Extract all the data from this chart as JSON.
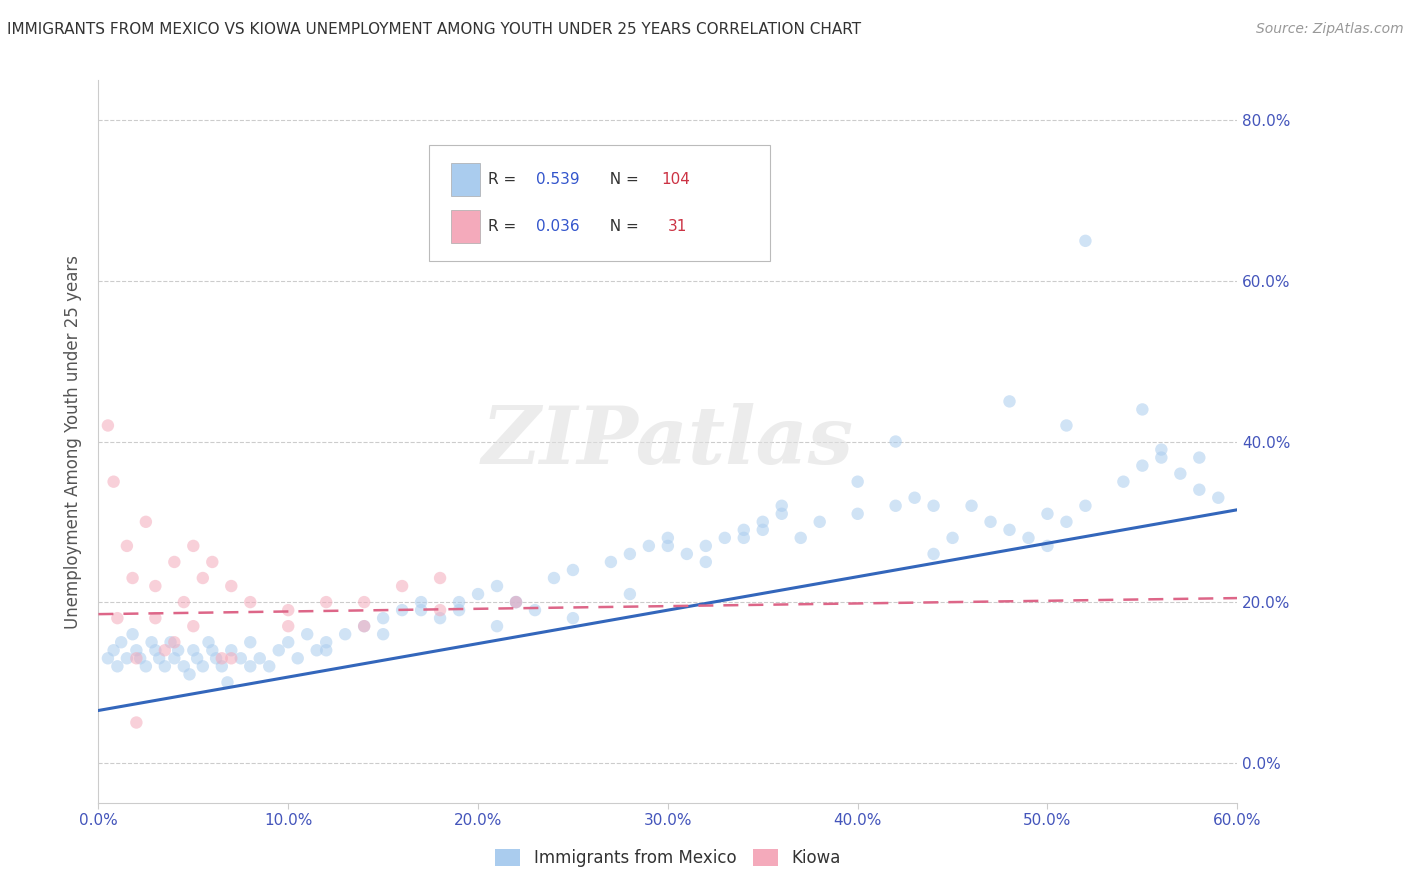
{
  "title": "IMMIGRANTS FROM MEXICO VS KIOWA UNEMPLOYMENT AMONG YOUTH UNDER 25 YEARS CORRELATION CHART",
  "source_text": "Source: ZipAtlas.com",
  "ylabel": "Unemployment Among Youth under 25 years",
  "x_min": 0.0,
  "x_max": 0.6,
  "y_min": -0.05,
  "y_max": 0.85,
  "x_ticks": [
    0.0,
    0.1,
    0.2,
    0.3,
    0.4,
    0.5,
    0.6
  ],
  "x_tick_labels": [
    "0.0%",
    "10.0%",
    "20.0%",
    "30.0%",
    "40.0%",
    "50.0%",
    "60.0%"
  ],
  "y_ticks": [
    0.0,
    0.2,
    0.4,
    0.6,
    0.8
  ],
  "y_tick_labels_left": [
    "",
    "",
    "",
    "",
    ""
  ],
  "y_tick_labels_right": [
    "0.0%",
    "20.0%",
    "40.0%",
    "60.0%",
    "80.0%"
  ],
  "legend_entries": [
    {
      "label": "Immigrants from Mexico",
      "color": "#a8c8f0",
      "R": "0.539",
      "N": "104"
    },
    {
      "label": "Kiowa",
      "color": "#f4b8c8",
      "R": "0.036",
      "N": "31"
    }
  ],
  "blue_scatter_x": [
    0.005,
    0.008,
    0.01,
    0.012,
    0.015,
    0.018,
    0.02,
    0.022,
    0.025,
    0.028,
    0.03,
    0.032,
    0.035,
    0.038,
    0.04,
    0.042,
    0.045,
    0.048,
    0.05,
    0.052,
    0.055,
    0.058,
    0.06,
    0.062,
    0.065,
    0.068,
    0.07,
    0.075,
    0.08,
    0.085,
    0.09,
    0.095,
    0.1,
    0.105,
    0.11,
    0.115,
    0.12,
    0.13,
    0.14,
    0.15,
    0.16,
    0.17,
    0.18,
    0.19,
    0.2,
    0.21,
    0.22,
    0.23,
    0.24,
    0.25,
    0.27,
    0.28,
    0.29,
    0.3,
    0.31,
    0.32,
    0.33,
    0.34,
    0.35,
    0.36,
    0.37,
    0.38,
    0.4,
    0.42,
    0.43,
    0.44,
    0.45,
    0.46,
    0.47,
    0.48,
    0.49,
    0.5,
    0.51,
    0.52,
    0.54,
    0.55,
    0.56,
    0.57,
    0.58,
    0.59,
    0.48,
    0.52,
    0.55,
    0.56,
    0.5,
    0.35,
    0.28,
    0.25,
    0.21,
    0.19,
    0.17,
    0.15,
    0.36,
    0.4,
    0.42,
    0.3,
    0.34,
    0.32,
    0.22,
    0.12,
    0.08,
    0.44,
    0.51,
    0.58
  ],
  "blue_scatter_y": [
    0.13,
    0.14,
    0.12,
    0.15,
    0.13,
    0.16,
    0.14,
    0.13,
    0.12,
    0.15,
    0.14,
    0.13,
    0.12,
    0.15,
    0.13,
    0.14,
    0.12,
    0.11,
    0.14,
    0.13,
    0.12,
    0.15,
    0.14,
    0.13,
    0.12,
    0.1,
    0.14,
    0.13,
    0.15,
    0.13,
    0.12,
    0.14,
    0.15,
    0.13,
    0.16,
    0.14,
    0.15,
    0.16,
    0.17,
    0.18,
    0.19,
    0.2,
    0.18,
    0.19,
    0.21,
    0.22,
    0.2,
    0.19,
    0.23,
    0.24,
    0.25,
    0.26,
    0.27,
    0.28,
    0.26,
    0.27,
    0.28,
    0.29,
    0.3,
    0.31,
    0.28,
    0.3,
    0.31,
    0.32,
    0.33,
    0.32,
    0.28,
    0.32,
    0.3,
    0.29,
    0.28,
    0.31,
    0.3,
    0.32,
    0.35,
    0.37,
    0.38,
    0.36,
    0.34,
    0.33,
    0.45,
    0.65,
    0.44,
    0.39,
    0.27,
    0.29,
    0.21,
    0.18,
    0.17,
    0.2,
    0.19,
    0.16,
    0.32,
    0.35,
    0.4,
    0.27,
    0.28,
    0.25,
    0.2,
    0.14,
    0.12,
    0.26,
    0.42,
    0.38
  ],
  "blue_line_x": [
    0.0,
    0.6
  ],
  "blue_line_y": [
    0.065,
    0.315
  ],
  "pink_scatter_x": [
    0.005,
    0.008,
    0.01,
    0.015,
    0.018,
    0.02,
    0.025,
    0.03,
    0.035,
    0.04,
    0.045,
    0.05,
    0.055,
    0.06,
    0.065,
    0.07,
    0.08,
    0.1,
    0.12,
    0.14,
    0.16,
    0.18,
    0.02,
    0.03,
    0.04,
    0.05,
    0.07,
    0.1,
    0.14,
    0.18,
    0.22
  ],
  "pink_scatter_y": [
    0.42,
    0.35,
    0.18,
    0.27,
    0.23,
    0.13,
    0.3,
    0.22,
    0.14,
    0.25,
    0.2,
    0.27,
    0.23,
    0.25,
    0.13,
    0.22,
    0.2,
    0.17,
    0.2,
    0.2,
    0.22,
    0.19,
    0.05,
    0.18,
    0.15,
    0.17,
    0.13,
    0.19,
    0.17,
    0.23,
    0.2
  ],
  "pink_line_x": [
    0.0,
    0.6
  ],
  "pink_line_y": [
    0.185,
    0.205
  ],
  "watermark_text": "ZIPatlas",
  "background_color": "#ffffff",
  "grid_color": "#cccccc",
  "scatter_alpha": 0.55,
  "scatter_size": 80,
  "blue_scatter_color": "#aaccee",
  "pink_scatter_color": "#f4aabb",
  "blue_line_color": "#3366bb",
  "pink_line_color": "#dd6688",
  "title_color": "#333333",
  "axis_label_color": "#555555",
  "tick_label_color": "#4455bb",
  "legend_R_color": "#3355cc",
  "legend_N_color": "#cc3344"
}
